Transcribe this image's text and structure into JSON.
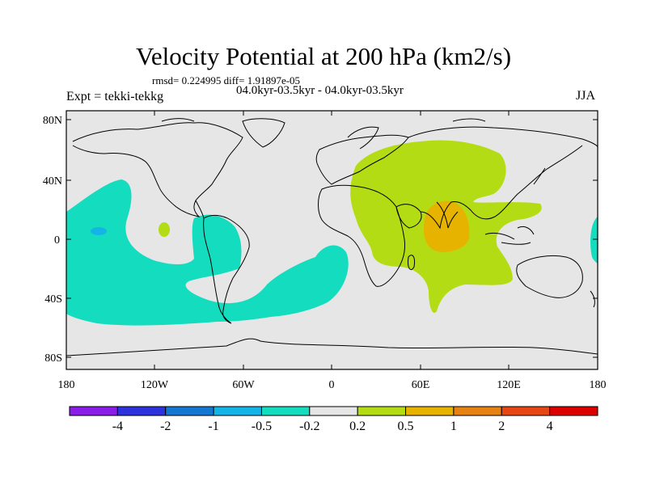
{
  "title": "Velocity Potential at 200 hPa (km2/s)",
  "stats_line": "rmsd= 0.224995 diff= 1.91897e-05",
  "left_label": "Expt = tekki-tekkg",
  "center_label": "04.0kyr-03.5kyr - 04.0kyr-03.5kyr",
  "right_label": "JJA",
  "lat_ticks": [
    "80N",
    "40N",
    "0",
    "40S",
    "80S"
  ],
  "lon_ticks": [
    "180",
    "120W",
    "60W",
    "0",
    "60E",
    "120E",
    "180"
  ],
  "colorbar": {
    "labels": [
      "-4",
      "-2",
      "-1",
      "-0.5",
      "-0.2",
      "0.2",
      "0.5",
      "1",
      "2",
      "4"
    ],
    "colors": [
      "#8a1ee6",
      "#2d32dc",
      "#1478d2",
      "#14b4e6",
      "#14dcbe",
      "#e6e6e6",
      "#b4dc14",
      "#e6b400",
      "#e68214",
      "#e64614",
      "#dc0000"
    ]
  },
  "colors": {
    "land_background": "#e6e6e6",
    "negative_fill": "#14dcbe",
    "positive_fill": "#b4dc14",
    "strong_positive_fill": "#e6b400",
    "strong_negative_fill": "#1478d2"
  }
}
